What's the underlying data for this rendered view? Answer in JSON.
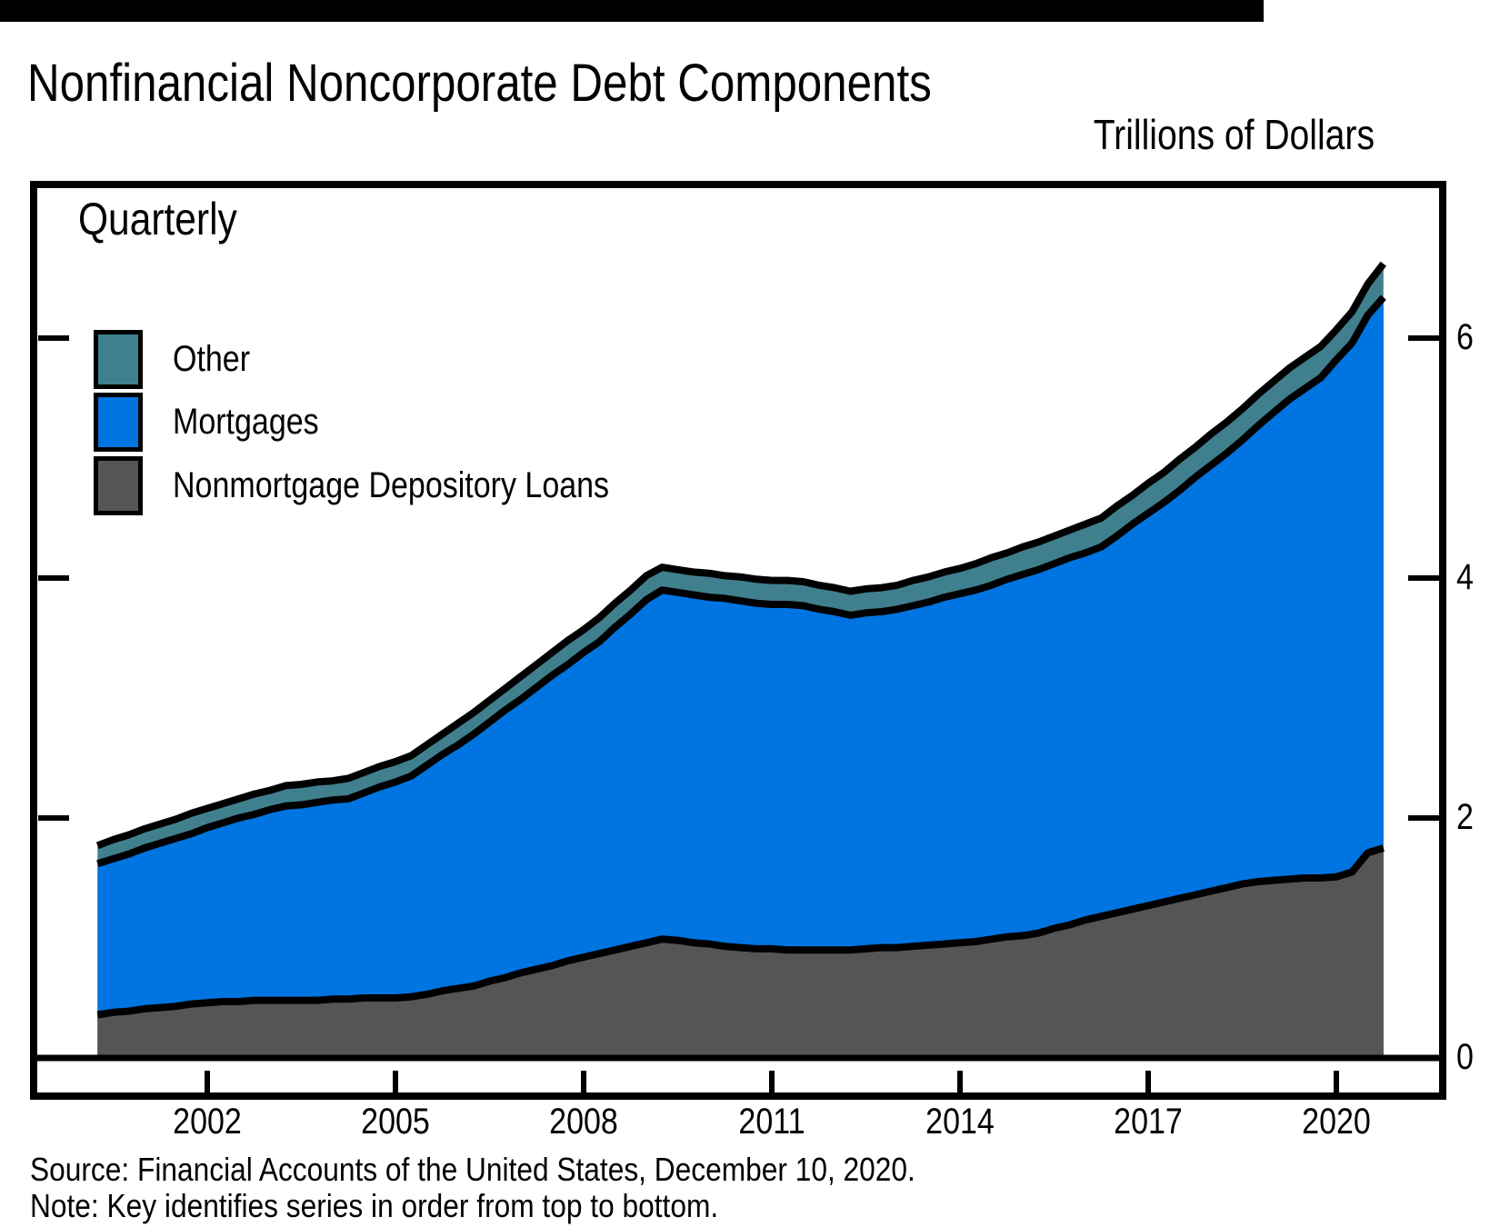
{
  "header": {
    "title": "Nonfinancial Noncorporate Debt Components",
    "units_label": "Trillions of Dollars"
  },
  "plot": {
    "frequency_label": "Quarterly",
    "legend": [
      {
        "label": "Other",
        "color": "#40808E"
      },
      {
        "label": "Mortgages",
        "color": "#0074E0"
      },
      {
        "label": "Nonmortgage Depository Loans",
        "color": "#555555"
      }
    ]
  },
  "footer": {
    "source": "Source: Financial Accounts of the United States, December 10, 2020.",
    "note": "Note: Key identifies series in order from top to bottom."
  },
  "chart_data": {
    "type": "area",
    "stacked": true,
    "title": "Nonfinancial Noncorporate Debt Components",
    "units": "Trillions of Dollars",
    "frequency": "Quarterly",
    "x_start": 2000.25,
    "x_step": 0.25,
    "x_end": 2020.75,
    "x_ticks": [
      2002,
      2005,
      2008,
      2011,
      2014,
      2017,
      2020
    ],
    "y_ticks": [
      6,
      4,
      2,
      0
    ],
    "xlim": [
      1999.28,
      2021.7
    ],
    "ylim": [
      -0.32,
      7.28
    ],
    "grid": false,
    "legend_position": "top-left",
    "outline_color": "#000000",
    "series": [
      {
        "name": "Nonmortgage Depository Loans",
        "color": "#555555",
        "values": [
          0.36,
          0.38,
          0.39,
          0.41,
          0.42,
          0.43,
          0.45,
          0.46,
          0.47,
          0.47,
          0.48,
          0.48,
          0.48,
          0.48,
          0.48,
          0.49,
          0.49,
          0.5,
          0.5,
          0.5,
          0.51,
          0.53,
          0.56,
          0.58,
          0.6,
          0.64,
          0.67,
          0.71,
          0.74,
          0.77,
          0.81,
          0.84,
          0.87,
          0.9,
          0.93,
          0.96,
          0.99,
          0.98,
          0.96,
          0.95,
          0.93,
          0.92,
          0.91,
          0.91,
          0.9,
          0.9,
          0.9,
          0.9,
          0.9,
          0.91,
          0.92,
          0.92,
          0.93,
          0.94,
          0.95,
          0.96,
          0.97,
          0.99,
          1.01,
          1.02,
          1.04,
          1.08,
          1.11,
          1.15,
          1.18,
          1.21,
          1.24,
          1.27,
          1.3,
          1.33,
          1.36,
          1.39,
          1.42,
          1.45,
          1.47,
          1.48,
          1.49,
          1.5,
          1.5,
          1.51,
          1.55,
          1.71,
          1.75
        ]
      },
      {
        "name": "Mortgages",
        "color": "#0074E0",
        "values": [
          1.26,
          1.28,
          1.31,
          1.34,
          1.37,
          1.4,
          1.42,
          1.46,
          1.49,
          1.53,
          1.55,
          1.59,
          1.62,
          1.63,
          1.65,
          1.66,
          1.67,
          1.71,
          1.76,
          1.8,
          1.84,
          1.91,
          1.97,
          2.03,
          2.1,
          2.16,
          2.23,
          2.28,
          2.35,
          2.42,
          2.47,
          2.54,
          2.6,
          2.69,
          2.77,
          2.86,
          2.91,
          2.9,
          2.9,
          2.89,
          2.9,
          2.89,
          2.88,
          2.87,
          2.88,
          2.87,
          2.84,
          2.82,
          2.79,
          2.8,
          2.8,
          2.82,
          2.84,
          2.86,
          2.89,
          2.91,
          2.93,
          2.95,
          2.98,
          3.01,
          3.03,
          3.04,
          3.06,
          3.06,
          3.08,
          3.14,
          3.21,
          3.27,
          3.33,
          3.4,
          3.48,
          3.55,
          3.62,
          3.7,
          3.8,
          3.9,
          4.0,
          4.08,
          4.17,
          4.31,
          4.41,
          4.48,
          4.59
        ]
      },
      {
        "name": "Other",
        "color": "#40808E",
        "values": [
          0.15,
          0.16,
          0.16,
          0.16,
          0.16,
          0.16,
          0.17,
          0.16,
          0.16,
          0.16,
          0.17,
          0.16,
          0.17,
          0.17,
          0.17,
          0.16,
          0.17,
          0.17,
          0.17,
          0.17,
          0.17,
          0.17,
          0.17,
          0.18,
          0.18,
          0.18,
          0.18,
          0.19,
          0.19,
          0.19,
          0.2,
          0.19,
          0.2,
          0.2,
          0.2,
          0.2,
          0.19,
          0.19,
          0.19,
          0.2,
          0.19,
          0.2,
          0.2,
          0.2,
          0.2,
          0.2,
          0.2,
          0.2,
          0.2,
          0.2,
          0.2,
          0.2,
          0.21,
          0.21,
          0.21,
          0.21,
          0.22,
          0.23,
          0.22,
          0.23,
          0.23,
          0.23,
          0.23,
          0.24,
          0.24,
          0.25,
          0.24,
          0.25,
          0.25,
          0.26,
          0.25,
          0.26,
          0.26,
          0.26,
          0.26,
          0.26,
          0.26,
          0.26,
          0.26,
          0.25,
          0.26,
          0.26,
          0.28
        ]
      }
    ]
  }
}
